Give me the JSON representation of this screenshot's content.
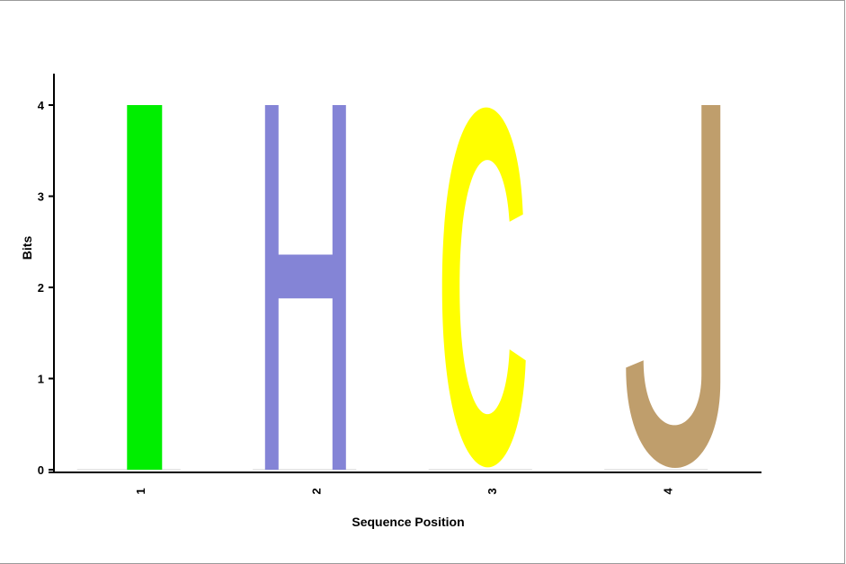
{
  "chart_data": {
    "type": "sequence-logo",
    "xlabel": "Sequence Position",
    "ylabel": "Bits",
    "ylim": [
      0,
      4
    ],
    "yticks": [
      0,
      1,
      2,
      3,
      4
    ],
    "positions": [
      "1",
      "2",
      "3",
      "4"
    ],
    "letters": [
      {
        "position": "1",
        "letter": "I",
        "bits": 4,
        "color": "#00ee00"
      },
      {
        "position": "2",
        "letter": "H",
        "bits": 4,
        "color": "#8484d6"
      },
      {
        "position": "3",
        "letter": "C",
        "bits": 4,
        "color": "#ffff00"
      },
      {
        "position": "4",
        "letter": "J",
        "bits": 4,
        "color": "#bf9e6c"
      }
    ]
  }
}
